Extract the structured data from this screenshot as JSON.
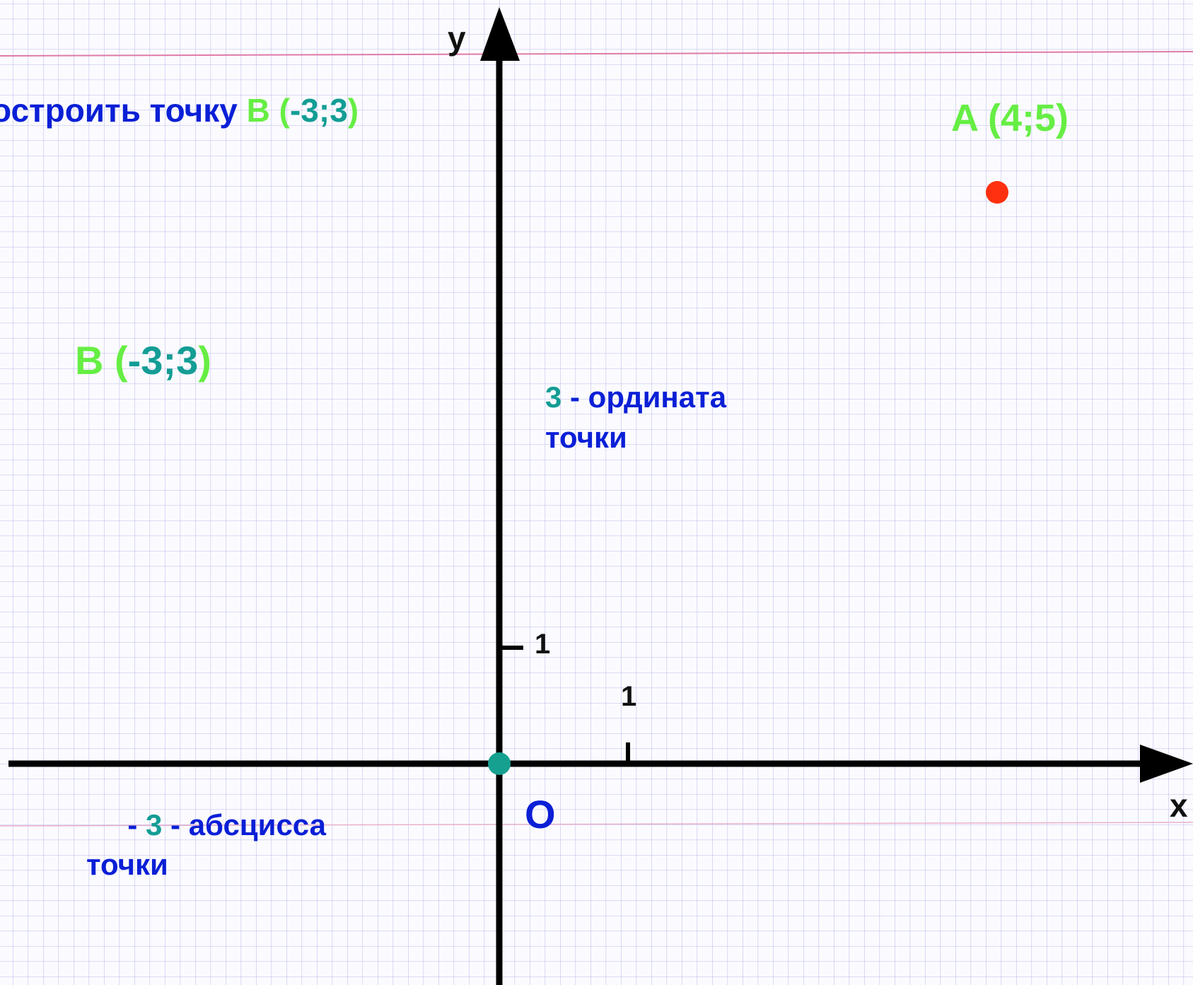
{
  "task": {
    "text": "остроить точку",
    "point": {
      "open": "B (",
      "coords": "-3;3",
      "close": ")"
    }
  },
  "point_a": {
    "label": "A (4;5)"
  },
  "point_b": {
    "open": "B (",
    "coords": "-3;3",
    "close": ")"
  },
  "ordinate_note": {
    "value": "3",
    "text": " - ордината",
    "line2": "точки"
  },
  "abscissa_note": {
    "prefix": "- ",
    "value": "3",
    "text": " - абсцисса",
    "line2": "точки"
  },
  "axes": {
    "x_label": "x",
    "y_label": "y",
    "origin": "O",
    "x_unit": "1",
    "y_unit": "1"
  }
}
